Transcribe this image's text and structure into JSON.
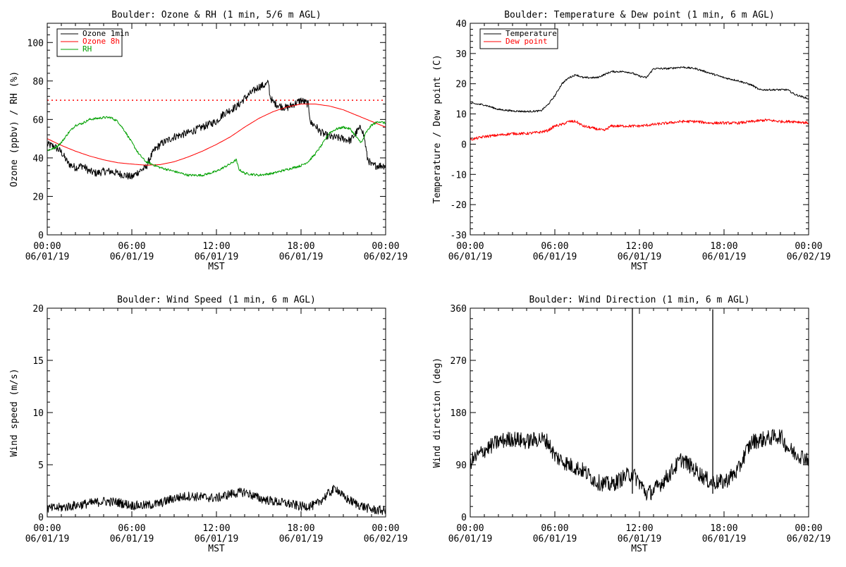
{
  "chart_data": [
    {
      "type": "line",
      "title": "Boulder: Ozone & RH (1 min, 5/6 m AGL)",
      "ylabel": "Ozone (ppbv) / RH (%)",
      "xlabel": "MST",
      "ylim": [
        0,
        110
      ],
      "yticks": [
        0,
        20,
        40,
        60,
        80,
        100
      ],
      "xticks": [
        {
          "time": "00:00",
          "date": "06/01/19"
        },
        {
          "time": "06:00",
          "date": "06/01/19"
        },
        {
          "time": "12:00",
          "date": "06/01/19"
        },
        {
          "time": "18:00",
          "date": "06/01/19"
        },
        {
          "time": "00:00",
          "date": "06/02/19"
        }
      ],
      "x_hours_range": [
        0,
        24
      ],
      "hline": {
        "y": 70,
        "color": "#ff0000",
        "style": "dotted"
      },
      "legend_position": "top-left",
      "series": [
        {
          "name": "Ozone 1min",
          "color": "#000000",
          "noise": 2.0,
          "points": [
            [
              0,
              47
            ],
            [
              0.5,
              46
            ],
            [
              1,
              43
            ],
            [
              1.5,
              37
            ],
            [
              2,
              35
            ],
            [
              2.5,
              36
            ],
            [
              3,
              33
            ],
            [
              3.5,
              32
            ],
            [
              4,
              33
            ],
            [
              4.5,
              33
            ],
            [
              5,
              32
            ],
            [
              5.5,
              31
            ],
            [
              6,
              30
            ],
            [
              6.5,
              33
            ],
            [
              7,
              35
            ],
            [
              7.3,
              40
            ],
            [
              7.6,
              44
            ],
            [
              8,
              47
            ],
            [
              9,
              51
            ],
            [
              10,
              53
            ],
            [
              11,
              56
            ],
            [
              12,
              59
            ],
            [
              12.5,
              63
            ],
            [
              13,
              65
            ],
            [
              13.5,
              67
            ],
            [
              14,
              71
            ],
            [
              14.5,
              74
            ],
            [
              15,
              77
            ],
            [
              15.5,
              78
            ],
            [
              15.7,
              79
            ],
            [
              15.8,
              72
            ],
            [
              16,
              69
            ],
            [
              16.5,
              67
            ],
            [
              17,
              66
            ],
            [
              17.5,
              68
            ],
            [
              18,
              70
            ],
            [
              18.5,
              68
            ],
            [
              18.7,
              58
            ],
            [
              19,
              57
            ],
            [
              19.3,
              54
            ],
            [
              19.7,
              52
            ],
            [
              20,
              51
            ],
            [
              21,
              50
            ],
            [
              21.5,
              49
            ],
            [
              22,
              54
            ],
            [
              22.3,
              56
            ],
            [
              22.5,
              50
            ],
            [
              22.7,
              40
            ],
            [
              23,
              36
            ],
            [
              23.5,
              36
            ],
            [
              24,
              36
            ]
          ]
        },
        {
          "name": "Ozone 8h",
          "color": "#ff0000",
          "noise": 0,
          "points": [
            [
              0,
              50
            ],
            [
              1,
              46.5
            ],
            [
              2,
              43.5
            ],
            [
              3,
              41
            ],
            [
              4,
              39
            ],
            [
              5,
              37.5
            ],
            [
              6,
              36.8
            ],
            [
              7,
              36.2
            ],
            [
              8,
              36.5
            ],
            [
              9,
              38
            ],
            [
              10,
              40.5
            ],
            [
              11,
              43.5
            ],
            [
              12,
              47
            ],
            [
              13,
              51
            ],
            [
              14,
              56
            ],
            [
              15,
              60.5
            ],
            [
              16,
              64
            ],
            [
              17,
              66.5
            ],
            [
              18,
              68
            ],
            [
              19,
              68
            ],
            [
              20,
              67
            ],
            [
              21,
              65
            ],
            [
              22,
              62
            ],
            [
              23,
              59
            ],
            [
              24,
              56
            ]
          ]
        },
        {
          "name": "RH",
          "color": "#00a000",
          "noise": 0.6,
          "points": [
            [
              0,
              44
            ],
            [
              0.5,
              45
            ],
            [
              1,
              48
            ],
            [
              1.5,
              53
            ],
            [
              2,
              57
            ],
            [
              2.5,
              58
            ],
            [
              3,
              60
            ],
            [
              4,
              61
            ],
            [
              4.5,
              61
            ],
            [
              5,
              59
            ],
            [
              5.5,
              54
            ],
            [
              6,
              48
            ],
            [
              6.5,
              42
            ],
            [
              7,
              38
            ],
            [
              8,
              35
            ],
            [
              9,
              33
            ],
            [
              10,
              31
            ],
            [
              11,
              31
            ],
            [
              12,
              33
            ],
            [
              13,
              37
            ],
            [
              13.4,
              39
            ],
            [
              13.6,
              34
            ],
            [
              14,
              32
            ],
            [
              15,
              31
            ],
            [
              16,
              32
            ],
            [
              17,
              34
            ],
            [
              18,
              36
            ],
            [
              18.5,
              38
            ],
            [
              19,
              42
            ],
            [
              19.5,
              47
            ],
            [
              20,
              53
            ],
            [
              20.5,
              55
            ],
            [
              21,
              56
            ],
            [
              21.5,
              55
            ],
            [
              22,
              50
            ],
            [
              22.3,
              48
            ],
            [
              22.6,
              53
            ],
            [
              23,
              57
            ],
            [
              23.5,
              59
            ],
            [
              24,
              58
            ]
          ]
        }
      ]
    },
    {
      "type": "line",
      "title": "Boulder: Temperature & Dew point (1 min, 6 m AGL)",
      "ylabel": "Temperature / Dew point (C)",
      "xlabel": "MST",
      "ylim": [
        -30,
        40
      ],
      "yticks": [
        -30,
        -20,
        -10,
        0,
        10,
        20,
        30,
        40
      ],
      "xticks": [
        {
          "time": "00:00",
          "date": "06/01/19"
        },
        {
          "time": "06:00",
          "date": "06/01/19"
        },
        {
          "time": "12:00",
          "date": "06/01/19"
        },
        {
          "time": "18:00",
          "date": "06/01/19"
        },
        {
          "time": "00:00",
          "date": "06/02/19"
        }
      ],
      "x_hours_range": [
        0,
        24
      ],
      "legend_position": "top-left",
      "series": [
        {
          "name": "Temperature",
          "color": "#000000",
          "noise": 0.3,
          "points": [
            [
              0,
              13.5
            ],
            [
              1,
              13
            ],
            [
              2,
              11.5
            ],
            [
              3,
              11
            ],
            [
              4,
              10.8
            ],
            [
              5,
              11
            ],
            [
              5.5,
              13
            ],
            [
              6,
              16
            ],
            [
              6.5,
              20
            ],
            [
              7,
              22
            ],
            [
              7.5,
              23
            ],
            [
              8,
              22
            ],
            [
              9,
              22
            ],
            [
              9.5,
              23
            ],
            [
              10,
              24
            ],
            [
              10.5,
              24
            ],
            [
              11,
              24
            ],
            [
              11.5,
              23.5
            ],
            [
              12,
              22.5
            ],
            [
              12.5,
              22
            ],
            [
              13,
              25
            ],
            [
              14,
              25
            ],
            [
              15,
              25.5
            ],
            [
              16,
              25
            ],
            [
              17,
              23.5
            ],
            [
              18,
              22
            ],
            [
              19,
              21
            ],
            [
              20,
              19.5
            ],
            [
              20.5,
              18
            ],
            [
              21,
              18
            ],
            [
              22,
              18
            ],
            [
              22.5,
              18
            ],
            [
              23,
              16.5
            ],
            [
              24,
              15
            ]
          ]
        },
        {
          "name": "Dew point",
          "color": "#ff0000",
          "noise": 0.45,
          "points": [
            [
              0,
              1.5
            ],
            [
              1,
              2.5
            ],
            [
              2,
              3
            ],
            [
              3,
              3.5
            ],
            [
              4,
              3.5
            ],
            [
              5,
              4
            ],
            [
              5.5,
              4.5
            ],
            [
              6,
              6
            ],
            [
              6.5,
              6.5
            ],
            [
              7,
              7.5
            ],
            [
              7.5,
              7.5
            ],
            [
              8,
              6
            ],
            [
              9,
              5
            ],
            [
              9.5,
              4.5
            ],
            [
              10,
              6
            ],
            [
              11,
              6
            ],
            [
              12,
              6
            ],
            [
              13,
              6.5
            ],
            [
              14,
              7
            ],
            [
              15,
              7.5
            ],
            [
              16,
              7.5
            ],
            [
              17,
              7
            ],
            [
              18,
              7
            ],
            [
              19,
              7
            ],
            [
              20,
              7.5
            ],
            [
              21,
              8
            ],
            [
              22,
              7.5
            ],
            [
              23,
              7.5
            ],
            [
              24,
              7
            ]
          ]
        }
      ]
    },
    {
      "type": "line",
      "title": "Boulder: Wind Speed (1 min, 6 m AGL)",
      "ylabel": "Wind speed (m/s)",
      "xlabel": "MST",
      "ylim": [
        0,
        20
      ],
      "yticks": [
        0,
        5,
        10,
        15,
        20
      ],
      "xticks": [
        {
          "time": "00:00",
          "date": "06/01/19"
        },
        {
          "time": "06:00",
          "date": "06/01/19"
        },
        {
          "time": "12:00",
          "date": "06/01/19"
        },
        {
          "time": "18:00",
          "date": "06/01/19"
        },
        {
          "time": "00:00",
          "date": "06/02/19"
        }
      ],
      "x_hours_range": [
        0,
        24
      ],
      "series": [
        {
          "name": "",
          "color": "#000000",
          "noise": 0.45,
          "points": [
            [
              0,
              0.8
            ],
            [
              1,
              0.9
            ],
            [
              2,
              1.1
            ],
            [
              3,
              1.3
            ],
            [
              4,
              1.5
            ],
            [
              5,
              1.4
            ],
            [
              6,
              1.1
            ],
            [
              7,
              1.1
            ],
            [
              8,
              1.3
            ],
            [
              9,
              1.8
            ],
            [
              10,
              2.0
            ],
            [
              11,
              1.9
            ],
            [
              12,
              1.8
            ],
            [
              13,
              2.2
            ],
            [
              14,
              2.4
            ],
            [
              15,
              1.8
            ],
            [
              16,
              1.5
            ],
            [
              17,
              1.3
            ],
            [
              18,
              1.0
            ],
            [
              19,
              1.1
            ],
            [
              20,
              2.3
            ],
            [
              20.5,
              2.8
            ],
            [
              21,
              1.9
            ],
            [
              22,
              1.2
            ],
            [
              23,
              0.7
            ],
            [
              24,
              0.6
            ]
          ]
        }
      ]
    },
    {
      "type": "line",
      "title": "Boulder: Wind Direction (1 min, 6 m AGL)",
      "ylabel": "Wind direction (deg)",
      "xlabel": "MST",
      "ylim": [
        0,
        360
      ],
      "yticks": [
        0,
        90,
        180,
        270,
        360
      ],
      "xticks": [
        {
          "time": "00:00",
          "date": "06/01/19"
        },
        {
          "time": "06:00",
          "date": "06/01/19"
        },
        {
          "time": "12:00",
          "date": "06/01/19"
        },
        {
          "time": "18:00",
          "date": "06/01/19"
        },
        {
          "time": "00:00",
          "date": "06/02/19"
        }
      ],
      "x_hours_range": [
        0,
        24
      ],
      "series": [
        {
          "name": "",
          "color": "#000000",
          "noise": 14,
          "points": [
            [
              0,
              95
            ],
            [
              1,
              115
            ],
            [
              2,
              130
            ],
            [
              3,
              135
            ],
            [
              4,
              130
            ],
            [
              5,
              135
            ],
            [
              5.5,
              130
            ],
            [
              6,
              105
            ],
            [
              7,
              90
            ],
            [
              8,
              80
            ],
            [
              9,
              60
            ],
            [
              10,
              55
            ],
            [
              11,
              70
            ],
            [
              11.5,
              75
            ],
            [
              12,
              60
            ],
            [
              12.5,
              40
            ],
            [
              13,
              45
            ],
            [
              14,
              70
            ],
            [
              15,
              100
            ],
            [
              15.5,
              90
            ],
            [
              16,
              80
            ],
            [
              17,
              60
            ],
            [
              18,
              60
            ],
            [
              19,
              80
            ],
            [
              19.5,
              110
            ],
            [
              20,
              130
            ],
            [
              21,
              135
            ],
            [
              22,
              140
            ],
            [
              22.5,
              120
            ],
            [
              23,
              110
            ],
            [
              24,
              100
            ]
          ]
        }
      ],
      "spikes": [
        {
          "x": 11.5,
          "y0": 40,
          "y1": 360
        },
        {
          "x": 17.2,
          "y0": 40,
          "y1": 358
        }
      ]
    }
  ]
}
